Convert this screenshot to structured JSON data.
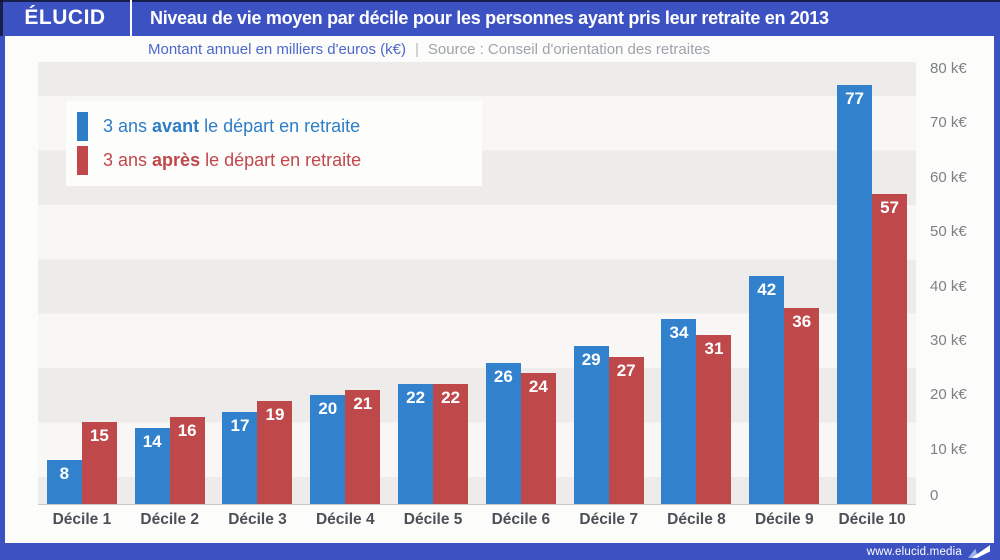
{
  "header": {
    "logo": "ÉLUCID",
    "title": "Niveau de vie moyen par décile pour les personnes ayant pris leur retraite en 2013"
  },
  "subtitle": {
    "metric": "Montant annuel en milliers d'euros (k€)",
    "separator": "|",
    "source": "Source : Conseil d'orientation des retraites"
  },
  "legend": [
    {
      "prefix": "3 ans",
      "emphasis": "avant",
      "suffix": "le départ en retraite",
      "color": "#2d7dc7"
    },
    {
      "prefix": "3 ans",
      "emphasis": "après",
      "suffix": "le départ en retraite",
      "color": "#c0474a"
    }
  ],
  "chart_data": {
    "type": "bar",
    "categories": [
      "Décile 1",
      "Décile 2",
      "Décile 3",
      "Décile 4",
      "Décile 5",
      "Décile 6",
      "Décile 7",
      "Décile 8",
      "Décile 9",
      "Décile 10"
    ],
    "series": [
      {
        "name": "3 ans avant le départ en retraite",
        "color": "#3181cd",
        "values": [
          8,
          14,
          17,
          20,
          22,
          26,
          29,
          34,
          42,
          77
        ]
      },
      {
        "name": "3 ans après le départ en retraite",
        "color": "#bf484b",
        "values": [
          15,
          16,
          19,
          21,
          22,
          24,
          27,
          31,
          36,
          57
        ]
      }
    ],
    "title": "Niveau de vie moyen par décile pour les personnes ayant pris leur retraite en 2013",
    "xlabel": "",
    "ylabel": "Montant annuel en milliers d'euros (k€)",
    "y_ticks": [
      {
        "value": 80,
        "label": "80 k€"
      },
      {
        "value": 70,
        "label": "70 k€"
      },
      {
        "value": 60,
        "label": "60 k€"
      },
      {
        "value": 50,
        "label": "50 k€"
      },
      {
        "value": 40,
        "label": "40 k€"
      },
      {
        "value": 30,
        "label": "30 k€"
      },
      {
        "value": 20,
        "label": "20 k€"
      },
      {
        "value": 10,
        "label": "10 k€"
      },
      {
        "value": 0,
        "label": "0"
      }
    ],
    "ylim": [
      0,
      81.5
    ],
    "grid": "alternating horizontal bands every 10 k€",
    "legend_position": "top-left"
  },
  "footer": {
    "url": "www.elucid.media"
  }
}
